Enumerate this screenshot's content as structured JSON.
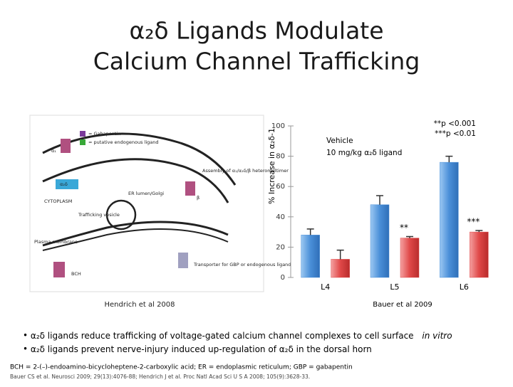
{
  "slide": {
    "title": [
      "α₂δ Ligands Modulate",
      "Calcium Channel Trafficking"
    ],
    "diagram": {
      "labels": [
        "= Gabapentin",
        "= putative endogenous ligand",
        "α₁",
        "α₂δ",
        "CYTOPLASM",
        "ER lumen/Golgi",
        "Assembly of α₁/α₂δ/β heteromultimer",
        "β",
        "Trafficking vesicle",
        "Plasma membrane",
        "BCH",
        "Transporter for GBP or endogenous ligand"
      ],
      "caption": "Hendrich et al 2008"
    },
    "bullets": [
      {
        "text": "α₂δ ligands reduce trafficking of voltage-gated calcium channel complexes to cell surface",
        "emphasis": "in vitro"
      },
      {
        "text": "α₂δ ligands prevent nerve-injury induced up-regulation of α₂δ in the dorsal horn"
      }
    ],
    "footnotes": [
      "BCH = 2-(–)-endoamino-bicycloheptene-2-carboxylic acid; ER = endoplasmic reticulum; GBP = gabapentin",
      "Bauer CS et al. Neurosci 2009; 29(13):4076-88; Hendrich J et al. Proc Natl Acad Sci U S A 2008; 105(9):3628-33."
    ]
  },
  "chart_data": {
    "type": "bar",
    "ylabel": "% Increase in α₂δ-1",
    "categories": [
      "L4",
      "L5",
      "L6"
    ],
    "series": [
      {
        "name": "Vehicle",
        "color": "#4a8fd8",
        "values": [
          28,
          48,
          76
        ],
        "errors": [
          4,
          6,
          4
        ]
      },
      {
        "name": "10 mg/kg α₂δ ligand",
        "color": "#e04848",
        "values": [
          12,
          26,
          30
        ],
        "errors": [
          6,
          1,
          1
        ]
      }
    ],
    "ylim": [
      0,
      100
    ],
    "yticks": [
      0,
      20,
      40,
      60,
      80,
      100
    ],
    "annotations": [
      {
        "text": "**",
        "category": 1
      },
      {
        "text": "***",
        "category": 2
      }
    ],
    "significance": [
      "**p <0.001",
      "***p <0.01"
    ],
    "source": "Bauer et al 2009"
  }
}
